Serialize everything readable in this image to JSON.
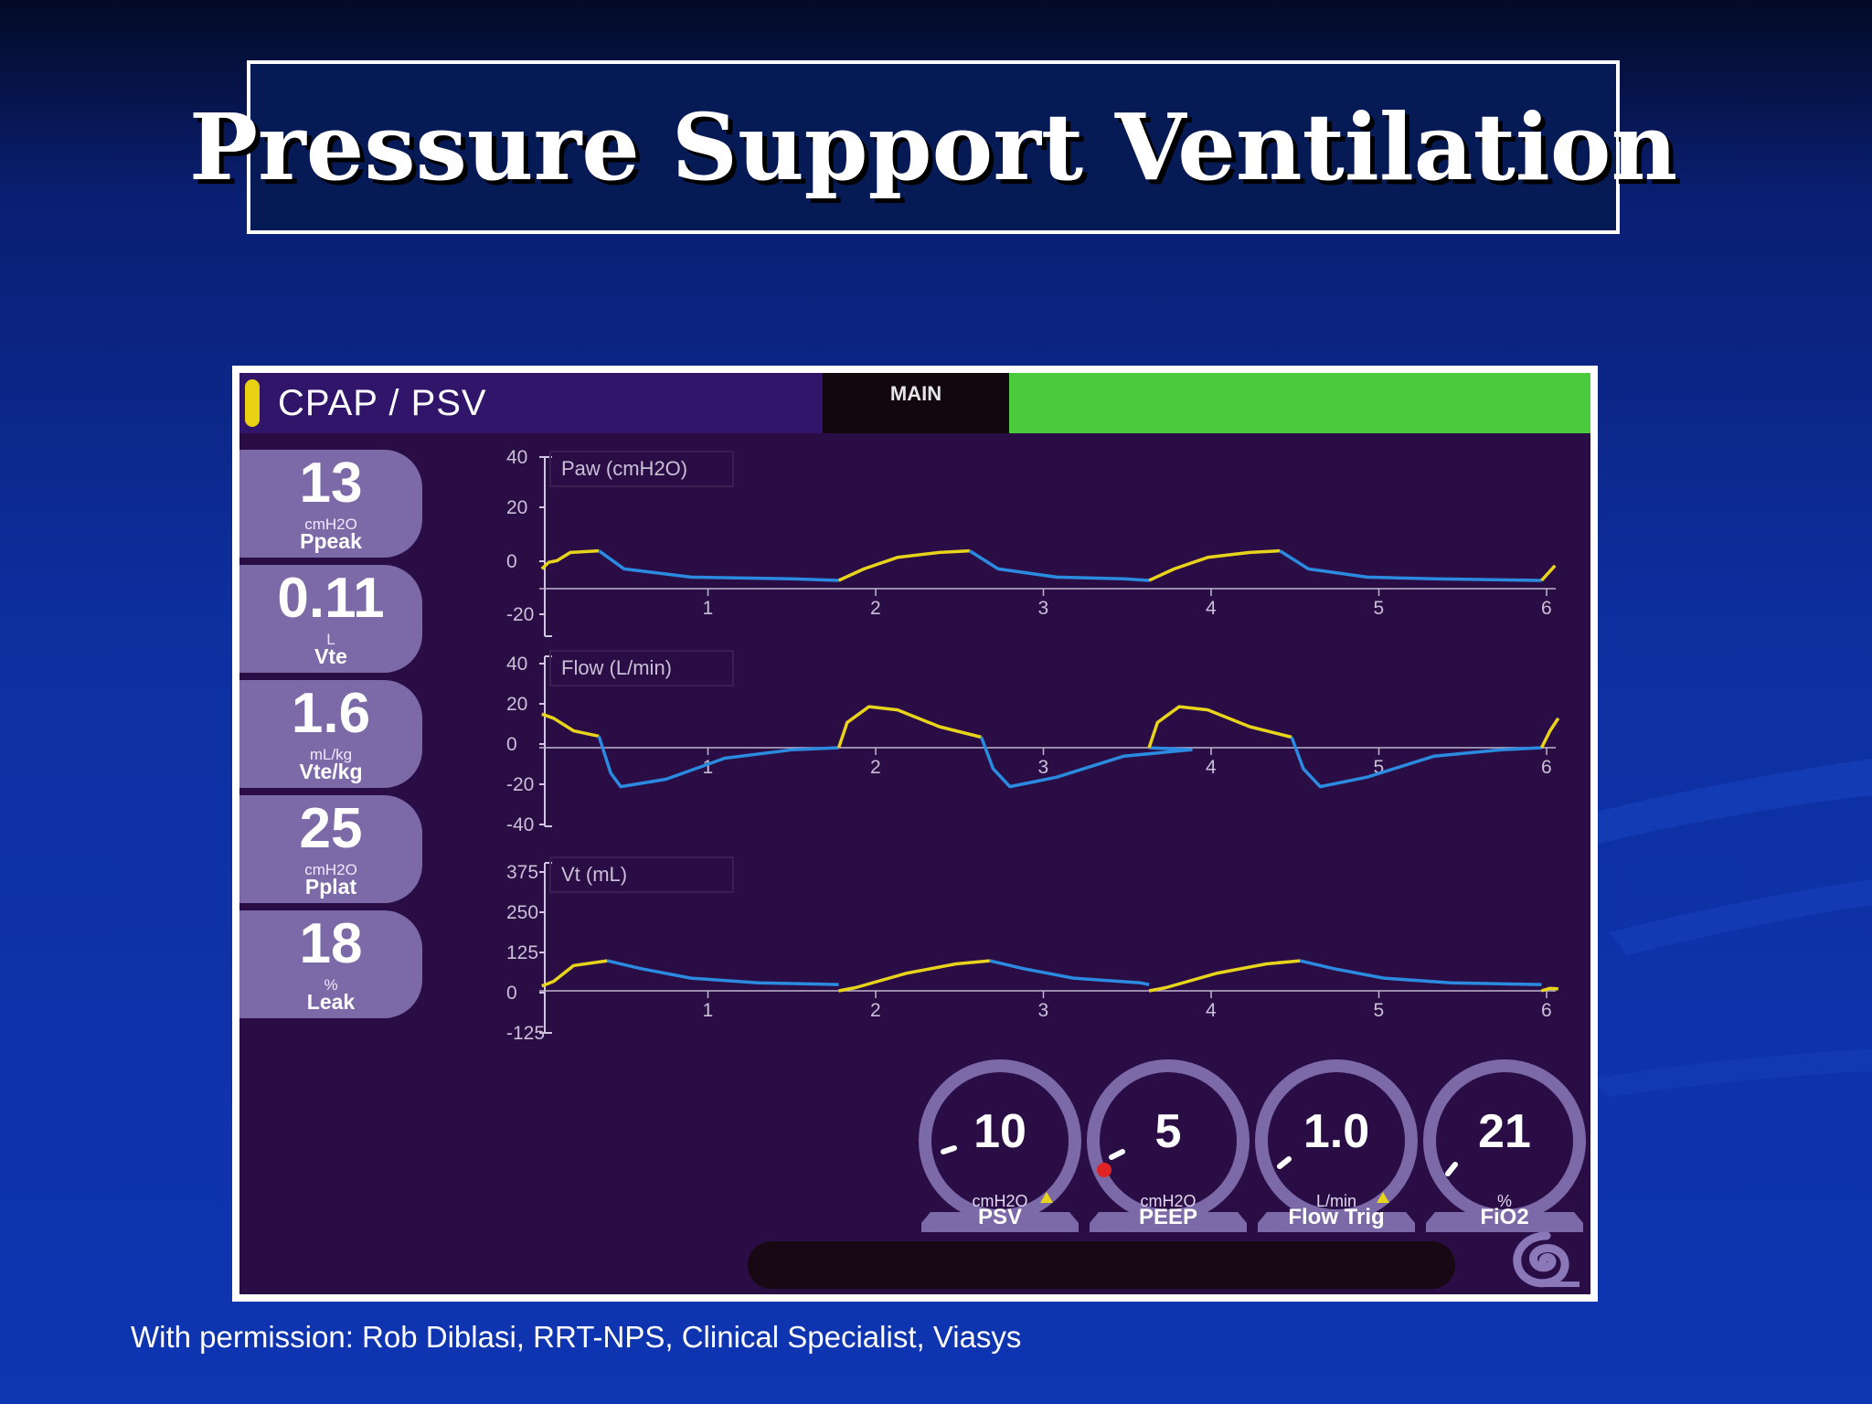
{
  "slide": {
    "title": "Pressure Support Ventilation",
    "credit": "With permission: Rob Diblasi, RRT-NPS, Clinical Specialist, Viasys"
  },
  "ventilator": {
    "mode": "CPAP / PSV",
    "tab": "MAIN",
    "measurements": [
      {
        "value": "13",
        "unit": "cmH2O",
        "name": "Ppeak"
      },
      {
        "value": "0.11",
        "unit": "L",
        "name": "Vte"
      },
      {
        "value": "1.6",
        "unit": "mL/kg",
        "name": "Vte/kg"
      },
      {
        "value": "25",
        "unit": "cmH2O",
        "name": "Pplat"
      },
      {
        "value": "18",
        "unit": "%",
        "name": "Leak"
      }
    ],
    "plots": [
      {
        "label": "Paw (cmH2O)",
        "y_ticks": [
          "40",
          "20",
          "0",
          "-20"
        ],
        "y_range": [
          -20,
          40
        ]
      },
      {
        "label": "Flow (L/min)",
        "y_ticks": [
          "40",
          "20",
          "0",
          "-20",
          "-40"
        ],
        "y_range": [
          -40,
          40
        ]
      },
      {
        "label": "Vt (mL)",
        "y_ticks": [
          "375",
          "250",
          "125",
          "0",
          "-125"
        ],
        "y_range": [
          -125,
          375
        ]
      }
    ],
    "x_ticks": [
      "1",
      "2",
      "3",
      "4",
      "5",
      "6"
    ],
    "controls": [
      {
        "value": "10",
        "unit": "cmH2O",
        "name": "PSV",
        "alert": true
      },
      {
        "value": "5",
        "unit": "cmH2O",
        "name": "PEEP",
        "alert": false
      },
      {
        "value": "1.0",
        "unit": "L/min",
        "name": "Flow Trig",
        "alert": true
      },
      {
        "value": "21",
        "unit": "%",
        "name": "FiO2",
        "alert": false
      }
    ],
    "colors": {
      "inspiration": "#e8d41a",
      "expiration": "#2a8be0",
      "alarm_ok": "#4cca3e",
      "screen_bg": "#2a0d44"
    }
  }
}
